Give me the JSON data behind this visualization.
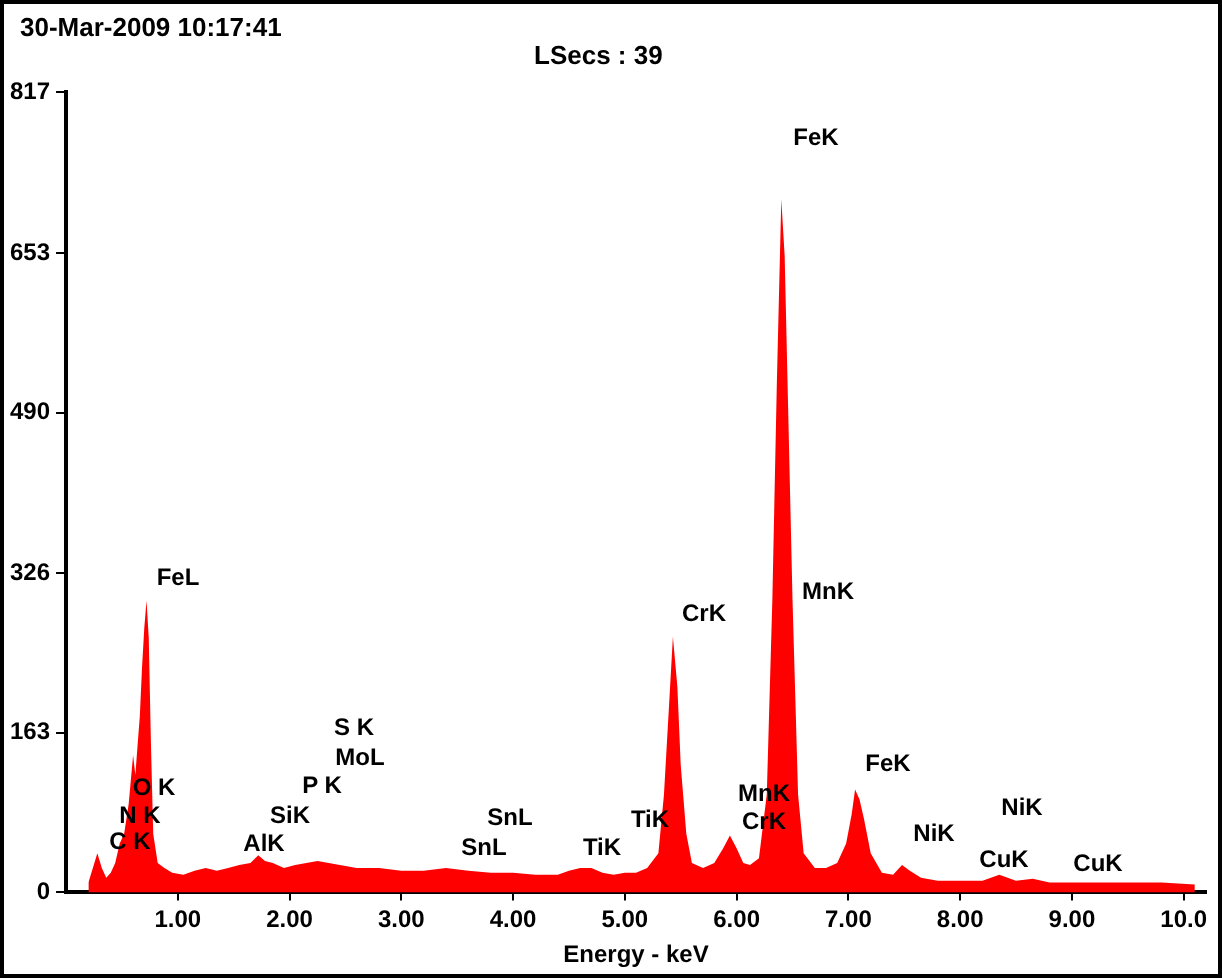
{
  "chart_data": {
    "type": "area",
    "title": "30-Mar-2009 10:17:41",
    "subtitle": "LSecs :  39",
    "xlabel": "Energy - keV",
    "x": [
      0.2,
      0.24,
      0.28,
      0.32,
      0.36,
      0.4,
      0.44,
      0.48,
      0.52,
      0.56,
      0.6,
      0.62,
      0.64,
      0.66,
      0.68,
      0.7,
      0.72,
      0.74,
      0.76,
      0.78,
      0.82,
      0.88,
      0.95,
      1.05,
      1.15,
      1.25,
      1.35,
      1.45,
      1.55,
      1.65,
      1.72,
      1.78,
      1.85,
      1.95,
      2.05,
      2.15,
      2.25,
      2.35,
      2.45,
      2.6,
      2.8,
      3.0,
      3.2,
      3.4,
      3.6,
      3.8,
      4.0,
      4.2,
      4.4,
      4.5,
      4.6,
      4.7,
      4.8,
      4.9,
      5.0,
      5.1,
      5.2,
      5.3,
      5.35,
      5.4,
      5.43,
      5.47,
      5.5,
      5.55,
      5.6,
      5.7,
      5.8,
      5.88,
      5.94,
      6.0,
      6.06,
      6.12,
      6.2,
      6.27,
      6.32,
      6.36,
      6.4,
      6.43,
      6.46,
      6.5,
      6.55,
      6.6,
      6.7,
      6.8,
      6.9,
      6.98,
      7.03,
      7.06,
      7.1,
      7.14,
      7.2,
      7.3,
      7.4,
      7.48,
      7.55,
      7.65,
      7.8,
      8.0,
      8.2,
      8.35,
      8.5,
      8.65,
      8.8,
      9.0,
      9.2,
      9.5,
      9.8,
      10.1
    ],
    "series": [
      {
        "color": "#ff0000",
        "values": [
          10,
          25,
          40,
          25,
          15,
          20,
          30,
          50,
          60,
          90,
          140,
          120,
          150,
          180,
          230,
          270,
          298,
          260,
          150,
          60,
          30,
          25,
          20,
          18,
          22,
          25,
          22,
          25,
          28,
          30,
          38,
          32,
          30,
          25,
          28,
          30,
          32,
          30,
          28,
          25,
          25,
          22,
          22,
          25,
          22,
          20,
          20,
          18,
          18,
          22,
          25,
          25,
          20,
          18,
          20,
          20,
          25,
          40,
          100,
          200,
          261,
          210,
          130,
          60,
          30,
          25,
          30,
          45,
          58,
          45,
          30,
          28,
          35,
          100,
          300,
          520,
          708,
          650,
          500,
          300,
          100,
          40,
          25,
          25,
          30,
          50,
          80,
          105,
          95,
          75,
          40,
          20,
          18,
          28,
          22,
          15,
          12,
          12,
          12,
          18,
          12,
          14,
          10,
          10,
          10,
          10,
          10,
          8
        ]
      }
    ],
    "xlim": [
      0,
      10.2
    ],
    "xticks": [
      {
        "value": 1,
        "label": "1.00"
      },
      {
        "value": 2,
        "label": "2.00"
      },
      {
        "value": 3,
        "label": "3.00"
      },
      {
        "value": 4,
        "label": "4.00"
      },
      {
        "value": 5,
        "label": "5.00"
      },
      {
        "value": 6,
        "label": "6.00"
      },
      {
        "value": 7,
        "label": "7.00"
      },
      {
        "value": 8,
        "label": "8.00"
      },
      {
        "value": 9,
        "label": "9.00"
      },
      {
        "value": 10,
        "label": "10.0"
      }
    ],
    "ylim": [
      0,
      817
    ],
    "yticks": [
      0,
      163,
      326,
      490,
      653,
      817
    ],
    "grid": false,
    "legend": false,
    "annotations": [
      "C K",
      "N K",
      "O K",
      "FeL",
      "AlK",
      "SiK",
      "P K",
      "S K",
      "MoL",
      "SnL",
      "SnL",
      "TiK",
      "TiK",
      "CrK",
      "MnK",
      "FeK",
      "MnK",
      "CrK",
      "FeK",
      "NiK",
      "NiK",
      "CuK",
      "CuK"
    ]
  }
}
